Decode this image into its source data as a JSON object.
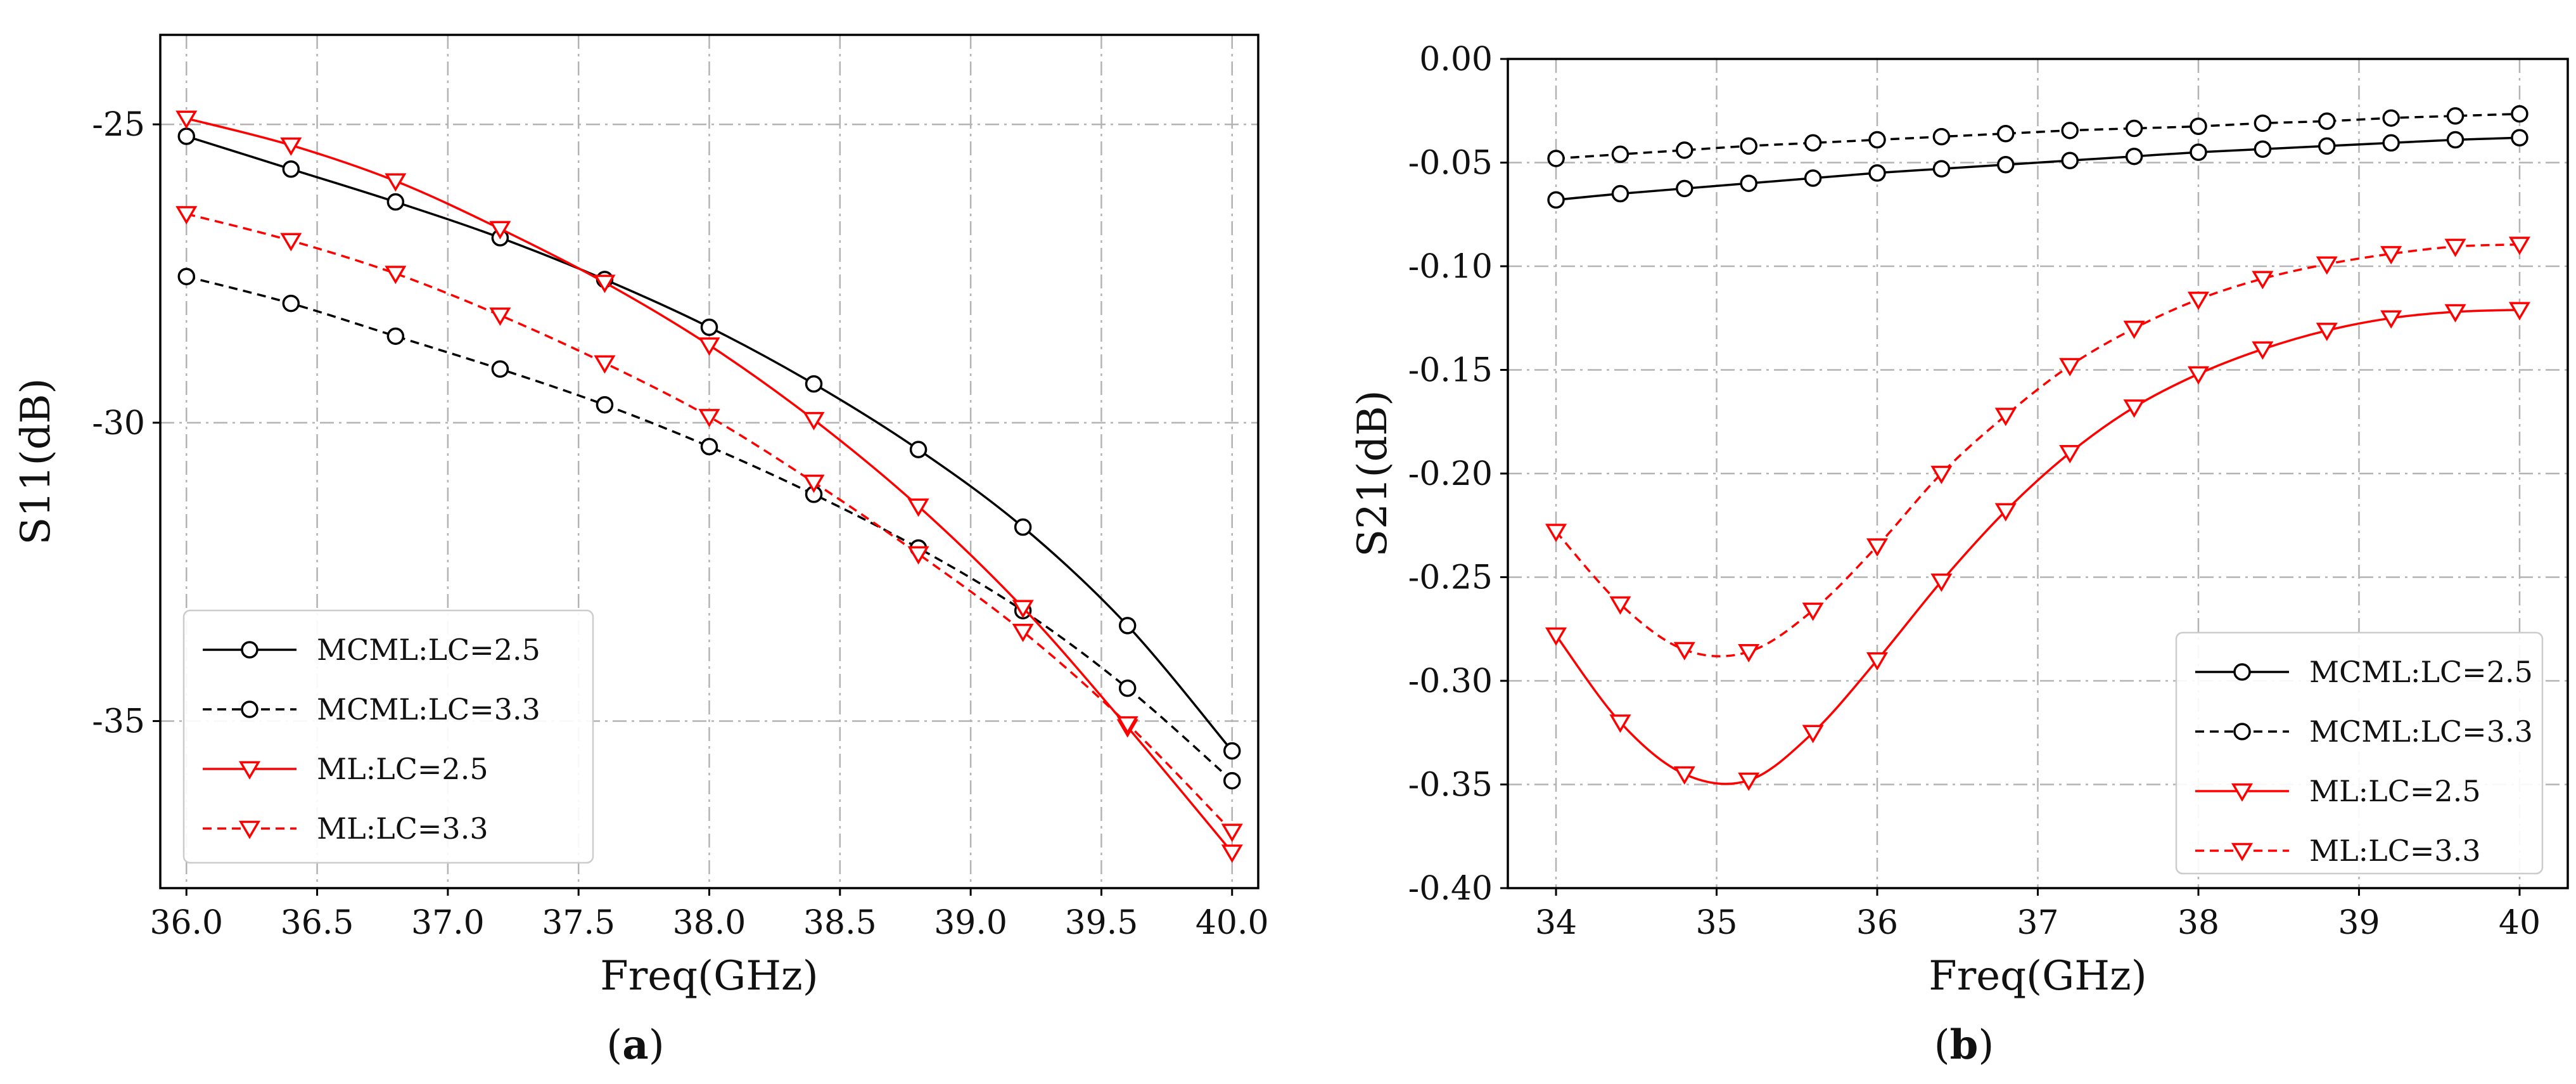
{
  "figure": {
    "caption_a": "a",
    "caption_b": "b"
  },
  "chart_data": [
    {
      "type": "line",
      "panel": "a",
      "title": "",
      "xlabel": "Freq(GHz)",
      "ylabel": "S11(dB)",
      "xlim": [
        35.9,
        40.1
      ],
      "ylim": [
        -37.8,
        -23.5
      ],
      "xticks": [
        36.0,
        36.5,
        37.0,
        37.5,
        38.0,
        38.5,
        39.0,
        39.5,
        40.0
      ],
      "xtick_labels": [
        "36.0",
        "36.5",
        "37.0",
        "37.5",
        "38.0",
        "38.5",
        "39.0",
        "39.5",
        "40.0"
      ],
      "yticks": [
        -25,
        -30,
        -35
      ],
      "ytick_labels": [
        "-25",
        "-30",
        "-35"
      ],
      "grid": true,
      "legend_position": "bottom-left",
      "x": [
        36.0,
        36.4,
        36.8,
        37.2,
        37.6,
        38.0,
        38.4,
        38.8,
        39.2,
        39.6,
        40.0
      ],
      "series": [
        {
          "name": "MCML:LC=2.5",
          "color": "#000000",
          "dashed": false,
          "marker": "circle",
          "values": [
            -25.2,
            -25.75,
            -26.3,
            -26.9,
            -27.6,
            -28.4,
            -29.35,
            -30.45,
            -31.75,
            -33.4,
            -35.5
          ]
        },
        {
          "name": "MCML:LC=3.3",
          "color": "#000000",
          "dashed": true,
          "marker": "circle",
          "values": [
            -27.55,
            -28.0,
            -28.55,
            -29.1,
            -29.7,
            -30.4,
            -31.2,
            -32.1,
            -33.15,
            -34.45,
            -36.0
          ]
        },
        {
          "name": "ML:LC=2.5",
          "color": "#ff0000",
          "dashed": false,
          "marker": "triangle",
          "values": [
            -24.9,
            -25.35,
            -25.95,
            -26.75,
            -27.65,
            -28.7,
            -29.95,
            -31.4,
            -33.1,
            -35.1,
            -37.2
          ]
        },
        {
          "name": "ML:LC=3.3",
          "color": "#ff0000",
          "dashed": true,
          "marker": "triangle",
          "values": [
            -26.5,
            -26.95,
            -27.5,
            -28.2,
            -29.0,
            -29.9,
            -31.0,
            -32.2,
            -33.5,
            -35.05,
            -36.85
          ]
        }
      ]
    },
    {
      "type": "line",
      "panel": "b",
      "title": "",
      "xlabel": "Freq(GHz)",
      "ylabel": "S21(dB)",
      "xlim": [
        33.7,
        40.3
      ],
      "ylim": [
        -0.4,
        0.0
      ],
      "xticks": [
        34,
        35,
        36,
        37,
        38,
        39,
        40
      ],
      "xtick_labels": [
        "34",
        "35",
        "36",
        "37",
        "38",
        "39",
        "40"
      ],
      "yticks": [
        0.0,
        -0.05,
        -0.1,
        -0.15,
        -0.2,
        -0.25,
        -0.3,
        -0.35,
        -0.4
      ],
      "ytick_labels": [
        "0.00",
        "-0.05",
        "-0.10",
        "-0.15",
        "-0.20",
        "-0.25",
        "-0.30",
        "-0.35",
        "-0.40"
      ],
      "grid": true,
      "legend_position": "bottom-right",
      "x": [
        34.0,
        34.4,
        34.8,
        35.2,
        35.6,
        36.0,
        36.4,
        36.8,
        37.2,
        37.6,
        38.0,
        38.4,
        38.8,
        39.2,
        39.6,
        40.0
      ],
      "series": [
        {
          "name": "MCML:LC=2.5",
          "color": "#000000",
          "dashed": false,
          "marker": "circle",
          "values": [
            -0.068,
            -0.065,
            -0.0625,
            -0.06,
            -0.0575,
            -0.055,
            -0.053,
            -0.051,
            -0.049,
            -0.047,
            -0.045,
            -0.0435,
            -0.042,
            -0.0405,
            -0.039,
            -0.038
          ]
        },
        {
          "name": "MCML:LC=3.3",
          "color": "#000000",
          "dashed": true,
          "marker": "circle",
          "values": [
            -0.048,
            -0.046,
            -0.044,
            -0.042,
            -0.0405,
            -0.039,
            -0.0375,
            -0.036,
            -0.0345,
            -0.0335,
            -0.0325,
            -0.031,
            -0.03,
            -0.0285,
            -0.0275,
            -0.0265
          ]
        },
        {
          "name": "ML:LC=2.5",
          "color": "#ff0000",
          "dashed": false,
          "marker": "triangle",
          "values": [
            -0.278,
            -0.32,
            -0.345,
            -0.348,
            -0.325,
            -0.29,
            -0.252,
            -0.218,
            -0.19,
            -0.168,
            -0.152,
            -0.14,
            -0.131,
            -0.125,
            -0.122,
            -0.121
          ]
        },
        {
          "name": "ML:LC=3.3",
          "color": "#ff0000",
          "dashed": true,
          "marker": "triangle",
          "values": [
            -0.228,
            -0.263,
            -0.285,
            -0.286,
            -0.266,
            -0.235,
            -0.2,
            -0.172,
            -0.148,
            -0.13,
            -0.116,
            -0.106,
            -0.099,
            -0.094,
            -0.0905,
            -0.0895
          ]
        }
      ]
    }
  ]
}
